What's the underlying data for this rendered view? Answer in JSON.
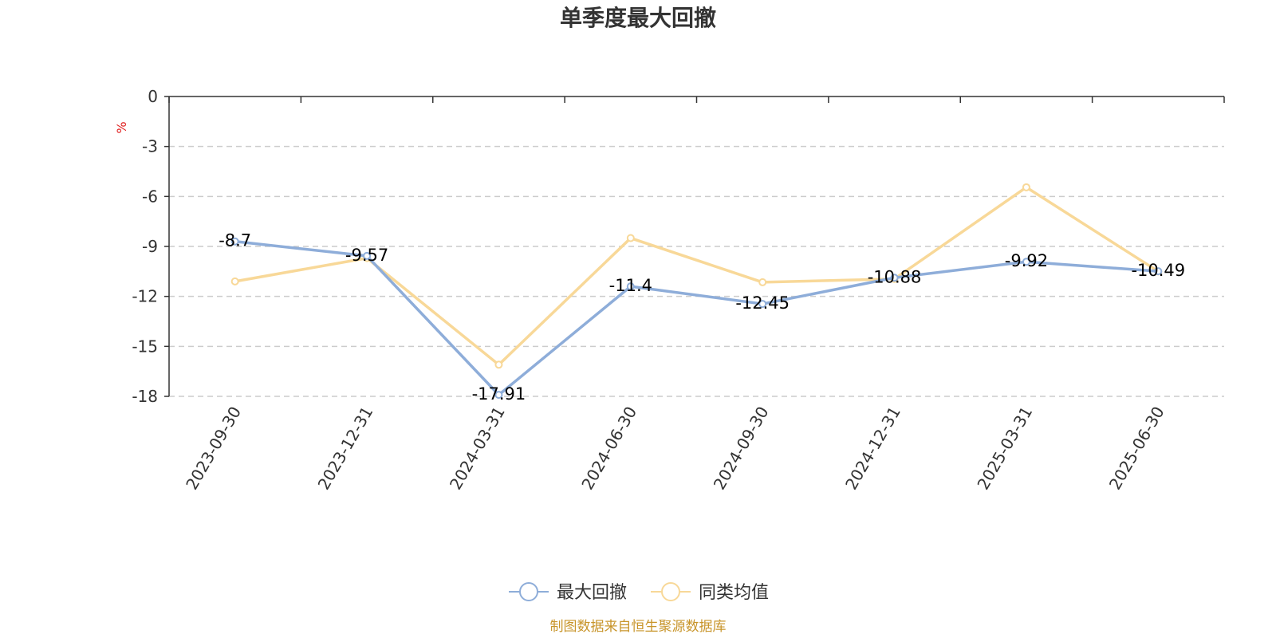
{
  "chart_data": {
    "type": "line",
    "title": "单季度最大回撤",
    "ylabel": "%",
    "ylim": [
      -18,
      0
    ],
    "yticks": [
      0,
      -3,
      -6,
      -9,
      -12,
      -15,
      -18
    ],
    "grid": true,
    "legend_position": "bottom-center",
    "categories": [
      "2023-09-30",
      "2023-12-31",
      "2024-03-31",
      "2024-06-30",
      "2024-09-30",
      "2024-12-31",
      "2025-03-31",
      "2025-06-30"
    ],
    "series": [
      {
        "name": "最大回撤",
        "color": "#8eadd9",
        "values": [
          -8.7,
          -9.57,
          -17.91,
          -11.4,
          -12.45,
          -10.88,
          -9.92,
          -10.49
        ],
        "labels": [
          "-8.7",
          "-9.57",
          "-17.91",
          "-11.4",
          "-12.45",
          "-10.88",
          "-9.92",
          "-10.49"
        ]
      },
      {
        "name": "同类均值",
        "color": "#f8d898",
        "values": [
          -11.1,
          -9.7,
          -16.1,
          -8.5,
          -11.15,
          -10.95,
          -5.45,
          -10.5
        ]
      }
    ],
    "source": "制图数据来自恒生聚源数据库"
  }
}
